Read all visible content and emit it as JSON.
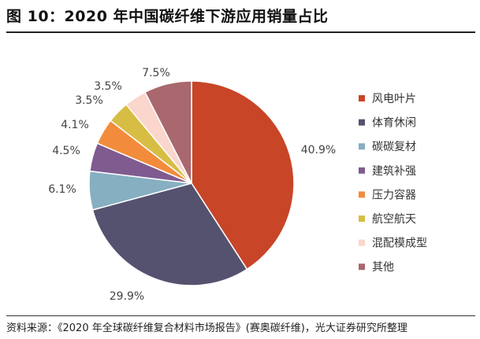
{
  "figure": {
    "title": "图 10：2020 年中国碳纤维下游应用销量占比",
    "source": "资料来源：《2020 年全球碳纤维复合材料市场报告》(赛奥碳纤维)，光大证券研究所整理"
  },
  "chart_data": {
    "type": "pie",
    "title": "",
    "legend_position": "right",
    "start_angle": "12 o'clock, clockwise",
    "slices": [
      {
        "label": "风电叶片",
        "value": 40.9,
        "value_label": "40.9%",
        "color": "#C84527"
      },
      {
        "label": "体育休闲",
        "value": 29.9,
        "value_label": "29.9%",
        "color": "#555270"
      },
      {
        "label": "碳碳复材",
        "value": 6.1,
        "value_label": "6.1%",
        "color": "#86AFC1"
      },
      {
        "label": "建筑补强",
        "value": 4.5,
        "value_label": "4.5%",
        "color": "#7F5B90"
      },
      {
        "label": "压力容器",
        "value": 4.1,
        "value_label": "4.1%",
        "color": "#F28C3C"
      },
      {
        "label": "航空航天",
        "value": 3.5,
        "value_label": "3.5%",
        "color": "#D8BD45"
      },
      {
        "label": "混配模成型",
        "value": 3.5,
        "value_label": "3.5%",
        "color": "#FAD6CC"
      },
      {
        "label": "其他",
        "value": 7.5,
        "value_label": "7.5%",
        "color": "#A9676E"
      }
    ]
  }
}
